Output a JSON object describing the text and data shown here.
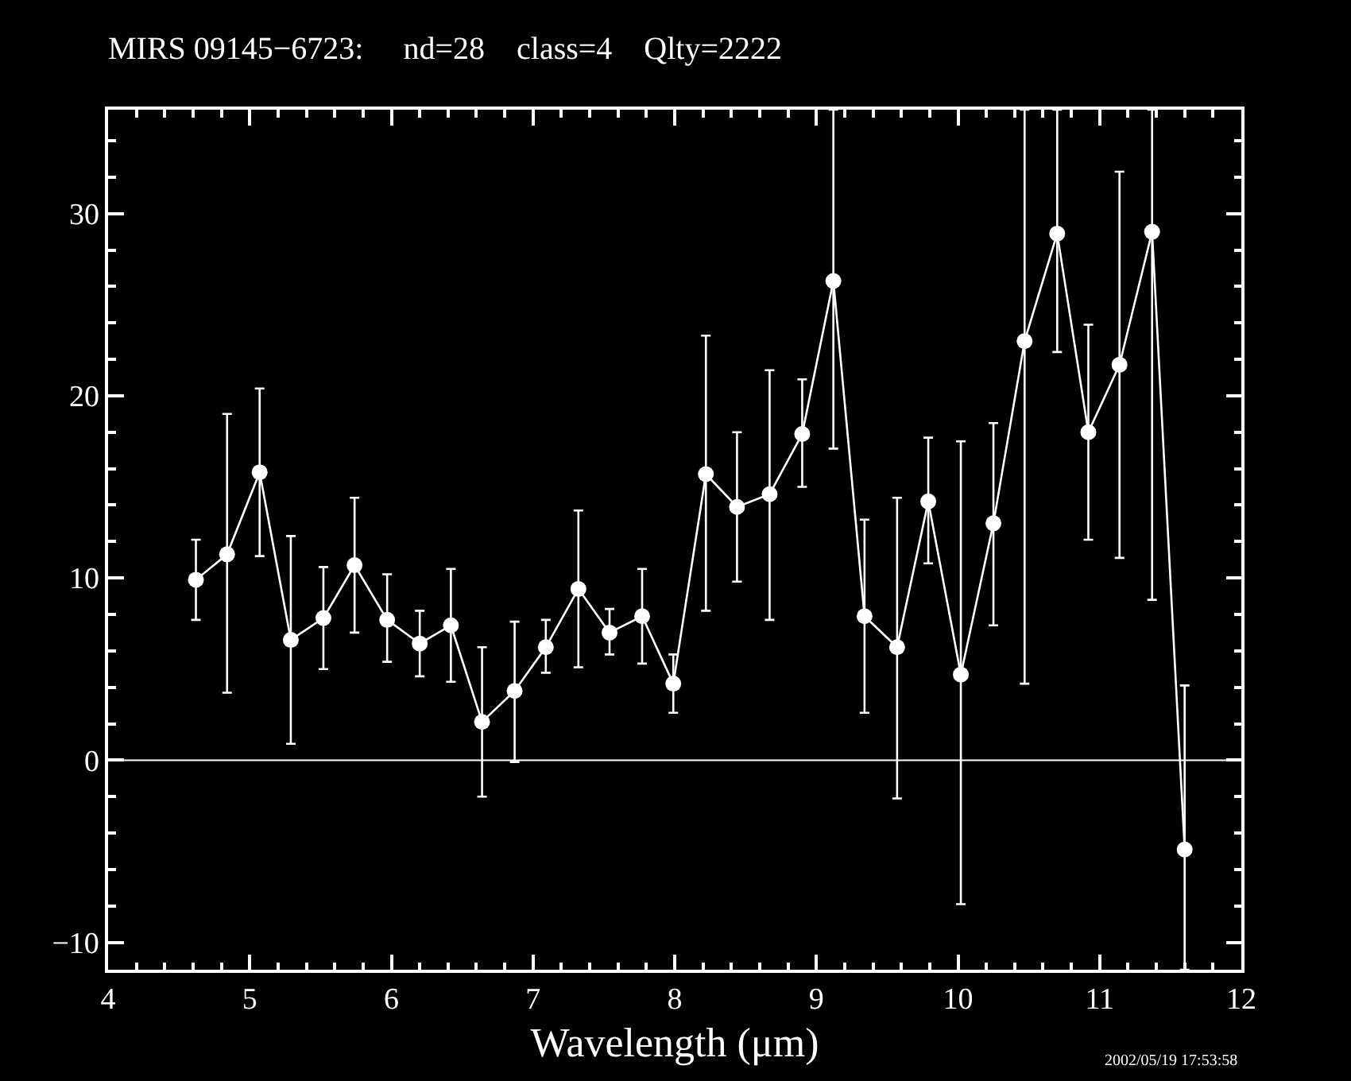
{
  "chart_data": {
    "type": "line",
    "title": "MIRS 09145−6723:     nd=28    class=4    Qlty=2222",
    "xlabel": "Wavelength (μm)",
    "annotations": [
      "2002/05/19 17:53:58"
    ],
    "x": [
      4.62,
      4.84,
      5.07,
      5.29,
      5.52,
      5.74,
      5.97,
      6.2,
      6.42,
      6.64,
      6.87,
      7.09,
      7.32,
      7.54,
      7.77,
      7.99,
      8.22,
      8.44,
      8.67,
      8.9,
      9.12,
      9.34,
      9.57,
      9.79,
      10.02,
      10.25,
      10.47,
      10.7,
      10.92,
      11.14,
      11.37,
      11.6
    ],
    "series": [
      {
        "color": "#ffffff",
        "values": [
          9.9,
          11.3,
          15.8,
          6.6,
          7.8,
          10.7,
          7.7,
          6.4,
          7.4,
          2.1,
          3.8,
          6.2,
          9.4,
          7.0,
          7.9,
          4.2,
          15.7,
          13.9,
          14.6,
          17.9,
          26.3,
          7.9,
          6.2,
          14.2,
          4.7,
          13.0,
          23.0,
          28.9,
          18.0,
          21.7,
          29.0,
          -4.9
        ],
        "errors": [
          [
            7.7,
            12.1
          ],
          [
            3.7,
            19.0
          ],
          [
            11.2,
            20.4
          ],
          [
            0.9,
            12.3
          ],
          [
            5.0,
            10.6
          ],
          [
            7.0,
            14.4
          ],
          [
            5.4,
            10.2
          ],
          [
            4.6,
            8.2
          ],
          [
            4.3,
            10.5
          ],
          [
            -2.0,
            6.2
          ],
          [
            -0.1,
            7.6
          ],
          [
            4.8,
            7.7
          ],
          [
            5.1,
            13.7
          ],
          [
            5.8,
            8.3
          ],
          [
            5.3,
            10.5
          ],
          [
            2.6,
            5.8
          ],
          [
            8.2,
            23.3
          ],
          [
            9.8,
            18.0
          ],
          [
            7.7,
            21.4
          ],
          [
            15.0,
            20.9
          ],
          [
            17.1,
            35.7
          ],
          [
            2.6,
            13.2
          ],
          [
            -2.1,
            14.4
          ],
          [
            10.8,
            17.7
          ],
          [
            -7.9,
            17.5
          ],
          [
            7.4,
            18.5
          ],
          [
            4.2,
            35.7
          ],
          [
            22.4,
            35.7
          ],
          [
            12.1,
            23.9
          ],
          [
            11.1,
            32.3
          ],
          [
            8.8,
            35.7
          ],
          [
            -11.5,
            4.1
          ]
        ]
      }
    ],
    "xlim": [
      4,
      12
    ],
    "ylim": [
      -11.5,
      35.7
    ],
    "xticks": [
      4,
      {
        "value": 4.2,
        "label": null
      },
      {
        "value": 4.4,
        "label": null
      },
      {
        "value": 4.6,
        "label": null
      },
      {
        "value": 4.8,
        "label": null
      },
      5,
      {
        "value": 5.2,
        "label": null
      },
      {
        "value": 5.4,
        "label": null
      },
      {
        "value": 5.6,
        "label": null
      },
      {
        "value": 5.8,
        "label": null
      },
      6,
      {
        "value": 6.2,
        "label": null
      },
      {
        "value": 6.4,
        "label": null
      },
      {
        "value": 6.6,
        "label": null
      },
      {
        "value": 6.8,
        "label": null
      },
      7,
      {
        "value": 7.2,
        "label": null
      },
      {
        "value": 7.4,
        "label": null
      },
      {
        "value": 7.6,
        "label": null
      },
      {
        "value": 7.8,
        "label": null
      },
      8,
      {
        "value": 8.2,
        "label": null
      },
      {
        "value": 8.4,
        "label": null
      },
      {
        "value": 8.6,
        "label": null
      },
      {
        "value": 8.8,
        "label": null
      },
      9,
      {
        "value": 9.2,
        "label": null
      },
      {
        "value": 9.4,
        "label": null
      },
      {
        "value": 9.6,
        "label": null
      },
      {
        "value": 9.8,
        "label": null
      },
      10,
      {
        "value": 10.2,
        "label": null
      },
      {
        "value": 10.4,
        "label": null
      },
      {
        "value": 10.6,
        "label": null
      },
      {
        "value": 10.8,
        "label": null
      },
      11,
      {
        "value": 11.2,
        "label": null
      },
      {
        "value": 11.4,
        "label": null
      },
      {
        "value": 11.6,
        "label": null
      },
      {
        "value": 11.8,
        "label": null
      },
      12
    ],
    "yticks": [
      -10,
      {
        "value": -8,
        "label": null
      },
      {
        "value": -6,
        "label": null
      },
      {
        "value": -4,
        "label": null
      },
      {
        "value": -2,
        "label": null
      },
      0,
      {
        "value": 2,
        "label": null
      },
      {
        "value": 4,
        "label": null
      },
      {
        "value": 6,
        "label": null
      },
      {
        "value": 8,
        "label": null
      },
      10,
      {
        "value": 12,
        "label": null
      },
      {
        "value": 14,
        "label": null
      },
      {
        "value": 16,
        "label": null
      },
      {
        "value": 18,
        "label": null
      },
      20,
      {
        "value": 22,
        "label": null
      },
      {
        "value": 24,
        "label": null
      },
      {
        "value": 26,
        "label": null
      },
      {
        "value": 28,
        "label": null
      },
      30,
      {
        "value": 32,
        "label": null
      },
      {
        "value": 34,
        "label": null
      }
    ],
    "ref_lines": [
      {
        "axis": "y",
        "value": 0,
        "color": "#ffffff"
      }
    ],
    "marker": "circle",
    "line_style": "solid"
  }
}
